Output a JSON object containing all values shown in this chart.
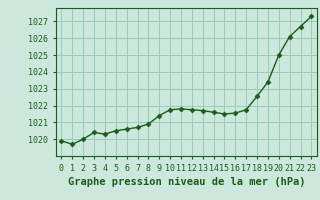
{
  "x": [
    0,
    1,
    2,
    3,
    4,
    5,
    6,
    7,
    8,
    9,
    10,
    11,
    12,
    13,
    14,
    15,
    16,
    17,
    18,
    19,
    20,
    21,
    22,
    23
  ],
  "y": [
    1019.9,
    1019.7,
    1020.0,
    1020.4,
    1020.3,
    1020.5,
    1020.6,
    1020.7,
    1020.9,
    1021.4,
    1021.75,
    1021.8,
    1021.75,
    1021.7,
    1021.6,
    1021.5,
    1021.55,
    1021.75,
    1022.55,
    1023.4,
    1025.0,
    1026.1,
    1026.7,
    1027.3
  ],
  "line_color": "#1a5c1a",
  "marker_color": "#1a5c1a",
  "bg_color": "#cce8dd",
  "grid_color": "#99ccbb",
  "xlabel": "Graphe pression niveau de la mer (hPa)",
  "ylim": [
    1019.0,
    1027.8
  ],
  "xlim": [
    -0.5,
    23.5
  ],
  "yticks": [
    1020,
    1021,
    1022,
    1023,
    1024,
    1025,
    1026,
    1027
  ],
  "xticks": [
    0,
    1,
    2,
    3,
    4,
    5,
    6,
    7,
    8,
    9,
    10,
    11,
    12,
    13,
    14,
    15,
    16,
    17,
    18,
    19,
    20,
    21,
    22,
    23
  ],
  "tick_color": "#1a5c1a",
  "label_fontsize": 6.0,
  "xlabel_fontsize": 7.5,
  "outer_bg": "#cce8dd"
}
